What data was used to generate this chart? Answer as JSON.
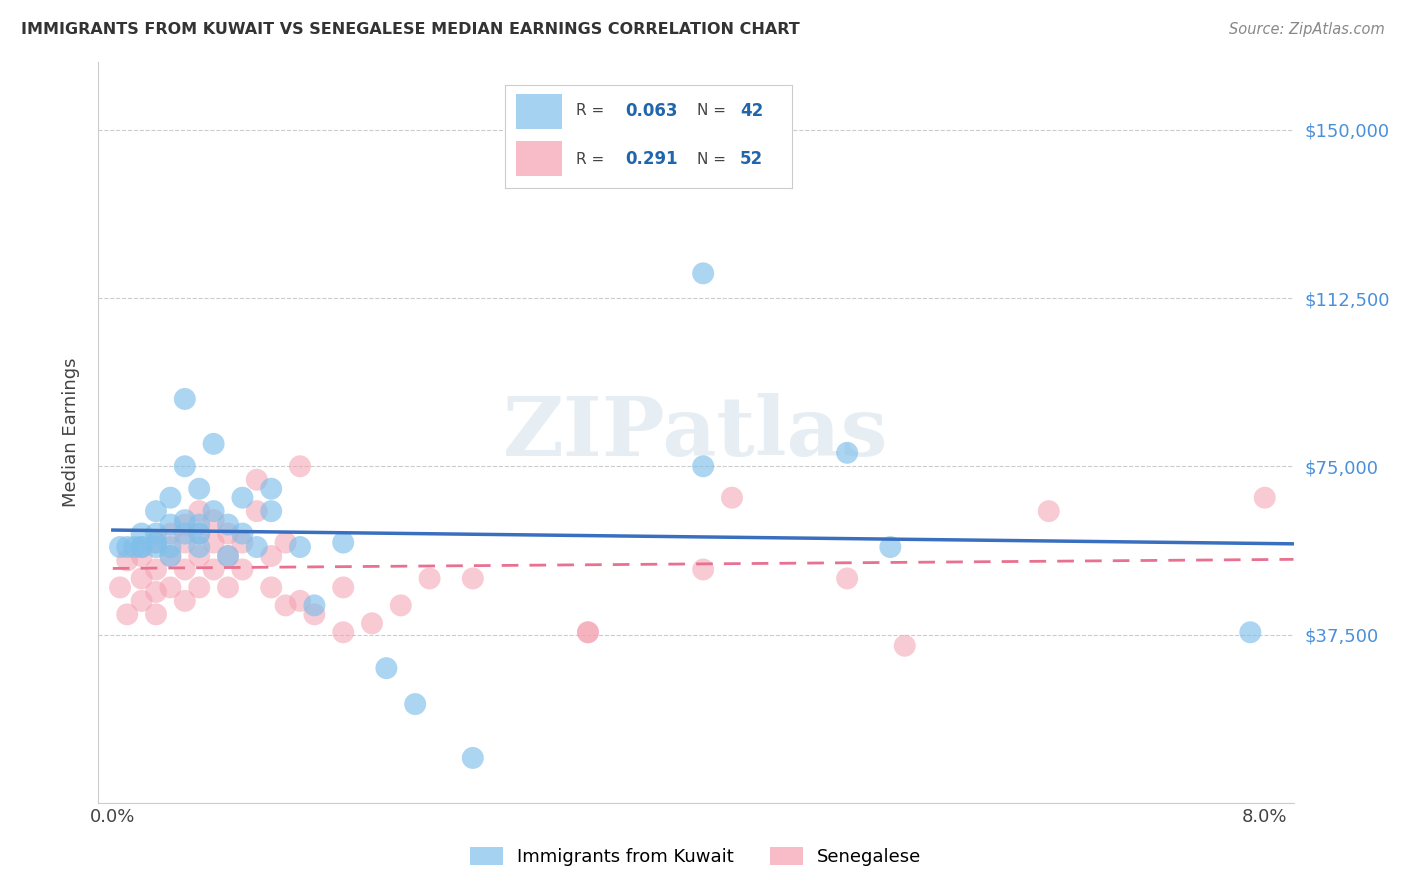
{
  "title": "IMMIGRANTS FROM KUWAIT VS SENEGALESE MEDIAN EARNINGS CORRELATION CHART",
  "source": "Source: ZipAtlas.com",
  "ylabel": "Median Earnings",
  "y_ticks": [
    0,
    37500,
    75000,
    112500,
    150000
  ],
  "y_tick_labels": [
    "",
    "$37,500",
    "$75,000",
    "$112,500",
    "$150,000"
  ],
  "xlim": [
    -0.001,
    0.082
  ],
  "ylim": [
    5000,
    165000
  ],
  "blue_color": "#7fbfea",
  "pink_color": "#f4a0b0",
  "blue_line_color": "#3a6fbf",
  "pink_line_color": "#e87090",
  "legend_R_blue": "0.063",
  "legend_N_blue": "42",
  "legend_R_pink": "0.291",
  "legend_N_pink": "52",
  "blue_scatter_x": [
    0.0005,
    0.001,
    0.0015,
    0.002,
    0.002,
    0.002,
    0.003,
    0.003,
    0.003,
    0.003,
    0.004,
    0.004,
    0.004,
    0.004,
    0.005,
    0.005,
    0.005,
    0.005,
    0.006,
    0.006,
    0.006,
    0.006,
    0.007,
    0.007,
    0.008,
    0.008,
    0.009,
    0.009,
    0.01,
    0.011,
    0.011,
    0.013,
    0.014,
    0.016,
    0.019,
    0.021,
    0.025,
    0.041,
    0.041,
    0.051,
    0.054,
    0.079
  ],
  "blue_scatter_y": [
    57000,
    57000,
    57000,
    57000,
    60000,
    57000,
    58000,
    60000,
    65000,
    57000,
    62000,
    55000,
    68000,
    57000,
    60000,
    63000,
    75000,
    90000,
    62000,
    60000,
    57000,
    70000,
    65000,
    80000,
    55000,
    62000,
    60000,
    68000,
    57000,
    65000,
    70000,
    57000,
    44000,
    58000,
    30000,
    22000,
    10000,
    75000,
    118000,
    78000,
    57000,
    38000
  ],
  "pink_scatter_x": [
    0.0005,
    0.001,
    0.001,
    0.002,
    0.002,
    0.002,
    0.003,
    0.003,
    0.003,
    0.003,
    0.004,
    0.004,
    0.004,
    0.005,
    0.005,
    0.005,
    0.005,
    0.006,
    0.006,
    0.006,
    0.006,
    0.007,
    0.007,
    0.007,
    0.008,
    0.008,
    0.008,
    0.009,
    0.009,
    0.01,
    0.01,
    0.011,
    0.011,
    0.012,
    0.012,
    0.013,
    0.013,
    0.014,
    0.016,
    0.016,
    0.018,
    0.02,
    0.022,
    0.025,
    0.033,
    0.033,
    0.041,
    0.043,
    0.051,
    0.055,
    0.065,
    0.08
  ],
  "pink_scatter_y": [
    48000,
    54000,
    42000,
    55000,
    50000,
    45000,
    58000,
    52000,
    47000,
    42000,
    60000,
    55000,
    48000,
    62000,
    58000,
    52000,
    45000,
    65000,
    60000,
    55000,
    48000,
    63000,
    58000,
    52000,
    60000,
    55000,
    48000,
    58000,
    52000,
    72000,
    65000,
    55000,
    48000,
    58000,
    44000,
    75000,
    45000,
    42000,
    48000,
    38000,
    40000,
    44000,
    50000,
    50000,
    38000,
    38000,
    52000,
    68000,
    50000,
    35000,
    65000,
    68000
  ]
}
